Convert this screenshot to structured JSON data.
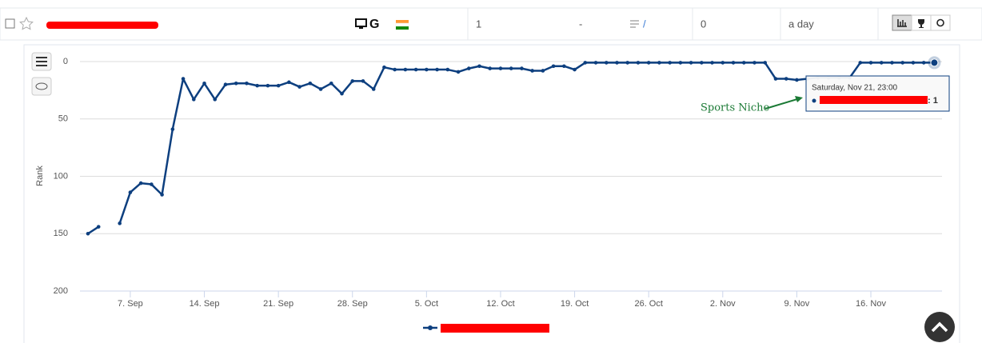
{
  "row": {
    "google": "G",
    "cells": [
      "1",
      "-",
      "/",
      "0",
      "a day"
    ]
  },
  "chart_data": {
    "type": "line",
    "y_label": "Rank",
    "y_reversed": true,
    "categories": [
      null,
      null,
      null,
      null,
      "7. Sep",
      null,
      null,
      null,
      null,
      null,
      null,
      "14. Sep",
      null,
      null,
      null,
      null,
      null,
      null,
      "21. Sep",
      null,
      null,
      null,
      null,
      null,
      null,
      "28. Sep",
      null,
      null,
      null,
      null,
      null,
      null,
      "5. Oct",
      null,
      null,
      null,
      null,
      null,
      null,
      "12. Oct",
      null,
      null,
      null,
      null,
      null,
      null,
      "19. Oct",
      null,
      null,
      null,
      null,
      null,
      null,
      "26. Oct",
      null,
      null,
      null,
      null,
      null,
      null,
      "2. Nov",
      null,
      null,
      null,
      null,
      null,
      null,
      "9. Nov",
      null,
      null,
      null,
      null,
      null,
      null,
      "16. Nov",
      null,
      null,
      null,
      null,
      null,
      null
    ],
    "series": [
      {
        "color": "#0d3f7f",
        "values": [
          150,
          144,
          null,
          141,
          114,
          106,
          107,
          116,
          59,
          15,
          33,
          19,
          33,
          20,
          19,
          19,
          21,
          21,
          21,
          18,
          22,
          19,
          24,
          19,
          28,
          17,
          17,
          24,
          5,
          7,
          7,
          7,
          7,
          7,
          7,
          9,
          6,
          4,
          6,
          6,
          6,
          6,
          8,
          8,
          4,
          4,
          7,
          1,
          1,
          1,
          1,
          1,
          1,
          1,
          1,
          1,
          1,
          1,
          1,
          1,
          1,
          1,
          1,
          1,
          1,
          15,
          15,
          16,
          15,
          14,
          14,
          14,
          14,
          1,
          1,
          1,
          1,
          1,
          1,
          1,
          1
        ]
      }
    ],
    "ylim": [
      0,
      200
    ],
    "yticks": [
      0,
      50,
      100,
      150,
      200
    ],
    "grid": true,
    "tooltip": {
      "title": "Saturday, Nov 21, 23:00",
      "text": ": 1"
    },
    "annotation": "Sports Niche"
  }
}
